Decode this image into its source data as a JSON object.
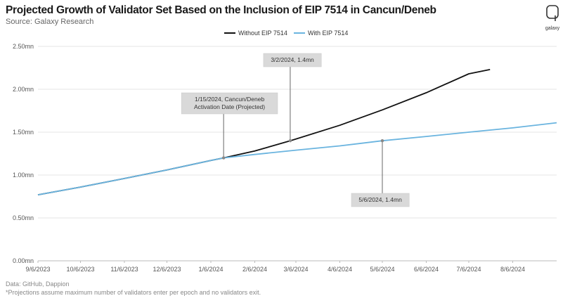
{
  "header": {
    "title": "Projected Growth of Validator Set Based on the Inclusion of EIP 7514 in Cancun/Deneb",
    "subtitle": "Source: Galaxy Research",
    "logo_label": "galaxy"
  },
  "footer": {
    "data_source": "Data: GitHub, Dappion",
    "note": "*Projections assume maximum number of validators enter per epoch and no validators exit."
  },
  "colors": {
    "without": "#111111",
    "with": "#6ab4df",
    "annotation_fill": "#d9d9d9",
    "grid": "#e6e6e6",
    "axis": "#bbbbbb"
  },
  "chart_data": {
    "type": "line",
    "title": "Projected Growth of Validator Set Based on the Inclusion of EIP 7514 in Cancun/Deneb",
    "xlabel": "",
    "ylabel": "",
    "x_tick_labels": [
      "9/6/2023",
      "10/6/2023",
      "11/6/2023",
      "12/6/2023",
      "1/6/2024",
      "2/6/2024",
      "3/6/2024",
      "4/6/2024",
      "5/6/2024",
      "6/6/2024",
      "7/6/2024",
      "8/6/2024"
    ],
    "x_range": [
      "9/6/2023",
      "9/6/2024"
    ],
    "y_ticks": [
      0,
      0.5,
      1.0,
      1.5,
      2.0,
      2.5
    ],
    "y_tick_labels": [
      "0.00mn",
      "0.50mn",
      "1.00mn",
      "1.50mn",
      "2.00mn",
      "2.50mn"
    ],
    "ylim": [
      0,
      2.5
    ],
    "grid": "horizontal",
    "legend_position": "top-center",
    "series": [
      {
        "name": "Without EIP 7514",
        "x": [
          "9/6/2023",
          "10/6/2023",
          "11/6/2023",
          "12/6/2023",
          "1/6/2024",
          "1/15/2024",
          "2/6/2024",
          "3/2/2024",
          "3/6/2024",
          "4/6/2024",
          "5/6/2024",
          "6/6/2024",
          "7/6/2024",
          "7/21/2024"
        ],
        "values": [
          0.77,
          0.86,
          0.96,
          1.06,
          1.17,
          1.2,
          1.28,
          1.4,
          1.42,
          1.58,
          1.76,
          1.96,
          2.18,
          2.23
        ]
      },
      {
        "name": "With EIP 7514",
        "x": [
          "9/6/2023",
          "10/6/2023",
          "11/6/2023",
          "12/6/2023",
          "1/6/2024",
          "1/15/2024",
          "2/6/2024",
          "3/6/2024",
          "4/6/2024",
          "5/6/2024",
          "6/6/2024",
          "7/6/2024",
          "8/6/2024",
          "9/6/2024"
        ],
        "values": [
          0.77,
          0.86,
          0.96,
          1.06,
          1.17,
          1.2,
          1.24,
          1.29,
          1.34,
          1.4,
          1.45,
          1.5,
          1.55,
          1.61
        ]
      }
    ],
    "annotations": [
      {
        "x": "1/15/2024",
        "y": 1.2,
        "lines": [
          "1/15/2024, Cancun/Deneb",
          "Activation Date (Projected)"
        ],
        "placement": "above"
      },
      {
        "x": "3/2/2024",
        "y": 1.4,
        "lines": [
          "3/2/2024, 1.4mn"
        ],
        "placement": "above"
      },
      {
        "x": "5/6/2024",
        "y": 1.4,
        "lines": [
          "5/6/2024, 1.4mn"
        ],
        "placement": "below"
      }
    ]
  }
}
